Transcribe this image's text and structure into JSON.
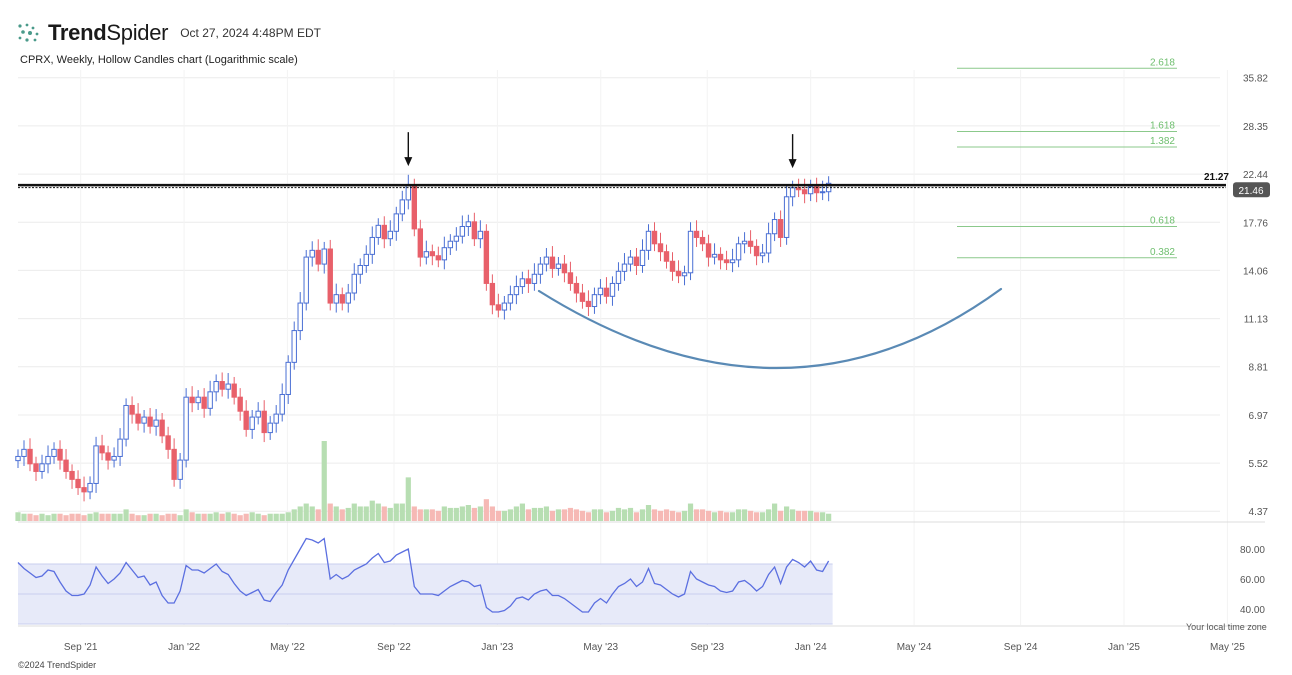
{
  "header": {
    "brand_bold": "Trend",
    "brand_light": "Spider",
    "timestamp": "Oct 27, 2024 4:48PM EDT",
    "subtitle": "CPRX, Weekly, Hollow Candles chart (Logarithmic scale)"
  },
  "footer": {
    "copyright": "©2024 TrendSpider",
    "timezone": "Your local time zone"
  },
  "colors": {
    "up": "#4a6fd4",
    "down": "#e8606a",
    "vol_up": "#b7deb2",
    "vol_down": "#f6b9b5",
    "fib": "#8bc98b",
    "fib_text": "#6fbf6f",
    "arc": "#5a8ab5",
    "rsi_line": "#5b6fe0",
    "rsi_band": "#e7eaf9",
    "grid": "#ececec",
    "axis_text": "#555555",
    "price_badge": "#555555"
  },
  "icons": {
    "logo": "spider-dots-icon",
    "marker": "down-arrow-icon"
  },
  "chart_data": {
    "type": "candlestick",
    "symbol": "CPRX",
    "interval": "Weekly",
    "scale": "log",
    "y_ticks": [
      35.82,
      28.35,
      22.44,
      17.76,
      14.06,
      11.13,
      8.81,
      6.97,
      5.52,
      4.37
    ],
    "x_ticks": [
      {
        "t": 2021.67,
        "label": "Sep '21"
      },
      {
        "t": 2022.0,
        "label": "Jan '22"
      },
      {
        "t": 2022.33,
        "label": "May '22"
      },
      {
        "t": 2022.67,
        "label": "Sep '22"
      },
      {
        "t": 2023.0,
        "label": "Jan '23"
      },
      {
        "t": 2023.33,
        "label": "May '23"
      },
      {
        "t": 2023.67,
        "label": "Sep '23"
      },
      {
        "t": 2024.0,
        "label": "Jan '24"
      },
      {
        "t": 2024.33,
        "label": "May '24"
      },
      {
        "t": 2024.67,
        "label": "Sep '24"
      },
      {
        "t": 2025.0,
        "label": "Jan '25"
      },
      {
        "t": 2025.33,
        "label": "May '25"
      }
    ],
    "closes": [
      5.7,
      5.9,
      5.5,
      5.3,
      5.5,
      5.7,
      5.9,
      5.6,
      5.3,
      5.1,
      4.9,
      4.8,
      5.0,
      6.0,
      5.8,
      5.6,
      5.7,
      6.2,
      7.3,
      7.0,
      6.7,
      6.9,
      6.6,
      6.8,
      6.3,
      5.9,
      5.1,
      5.6,
      7.6,
      7.4,
      7.6,
      7.2,
      7.8,
      8.2,
      7.9,
      8.1,
      7.6,
      7.1,
      6.5,
      6.9,
      7.1,
      6.4,
      6.7,
      7.0,
      7.7,
      9.0,
      10.5,
      12.0,
      15.0,
      15.5,
      14.5,
      15.6,
      12.0,
      12.5,
      12.0,
      12.6,
      13.8,
      14.4,
      15.2,
      16.5,
      17.5,
      16.4,
      17.0,
      18.5,
      19.8,
      21.2,
      17.2,
      15.0,
      15.4,
      15.1,
      14.8,
      15.7,
      16.2,
      16.6,
      17.4,
      17.8,
      16.4,
      17.0,
      13.2,
      11.9,
      11.6,
      12.0,
      12.5,
      13.0,
      13.5,
      13.2,
      13.8,
      14.5,
      15.0,
      14.2,
      14.5,
      13.9,
      13.2,
      12.6,
      12.1,
      11.8,
      12.5,
      12.9,
      12.4,
      13.2,
      14.0,
      14.5,
      15.0,
      14.4,
      15.5,
      17.0,
      16.0,
      15.4,
      14.7,
      14.0,
      13.7,
      13.9,
      17.0,
      16.5,
      16.0,
      15.0,
      15.2,
      14.8,
      14.6,
      14.8,
      16.0,
      16.2,
      15.8,
      15.1,
      15.3,
      16.8,
      18.0,
      16.5,
      20.1,
      21.0,
      20.8,
      20.4,
      21.1,
      20.5,
      20.6,
      21.46
    ],
    "current_price": 21.46,
    "resistance_label": "21.27",
    "resistance_level": 21.27,
    "fib_levels": [
      {
        "label": "2.618",
        "price": 37.5
      },
      {
        "label": "1.618",
        "price": 27.6
      },
      {
        "label": "1.382",
        "price": 25.6
      },
      {
        "label": "0.618",
        "price": 17.4
      },
      {
        "label": "0.382",
        "price": 14.95
      }
    ],
    "rsi_ticks": [
      80.0,
      60.0,
      40.0
    ],
    "rsi_band": [
      70,
      30
    ],
    "rsi_values": [
      71,
      67,
      64,
      61,
      62,
      66,
      65,
      58,
      52,
      49,
      49,
      50,
      56,
      68,
      62,
      57,
      60,
      64,
      71,
      66,
      61,
      62,
      56,
      58,
      49,
      44,
      44,
      52,
      69,
      66,
      66,
      64,
      67,
      70,
      65,
      63,
      57,
      52,
      49,
      51,
      53,
      46,
      45,
      51,
      56,
      66,
      73,
      80,
      87,
      86,
      84,
      87,
      60,
      63,
      60,
      62,
      66,
      68,
      70,
      74,
      77,
      71,
      72,
      76,
      78,
      80,
      55,
      50,
      50,
      50,
      49,
      52,
      55,
      57,
      59,
      58,
      55,
      56,
      41,
      38,
      38,
      39,
      42,
      47,
      48,
      46,
      50,
      52,
      53,
      49,
      49,
      47,
      44,
      41,
      38,
      38,
      44,
      47,
      44,
      50,
      55,
      57,
      60,
      55,
      58,
      67,
      57,
      56,
      53,
      50,
      48,
      50,
      65,
      60,
      58,
      56,
      55,
      52,
      51,
      52,
      58,
      59,
      56,
      52,
      55,
      63,
      68,
      57,
      68,
      73,
      71,
      68,
      72,
      66,
      65,
      72
    ],
    "volume_values": [
      6,
      5,
      5,
      4,
      5,
      4,
      5,
      5,
      4,
      5,
      5,
      4,
      5,
      6,
      5,
      5,
      5,
      5,
      8,
      5,
      4,
      4,
      5,
      5,
      4,
      5,
      5,
      4,
      8,
      6,
      5,
      5,
      5,
      6,
      5,
      6,
      5,
      4,
      5,
      6,
      5,
      4,
      5,
      5,
      5,
      6,
      8,
      10,
      12,
      10,
      8,
      55,
      12,
      10,
      8,
      9,
      12,
      10,
      10,
      14,
      12,
      10,
      9,
      12,
      12,
      30,
      10,
      8,
      8,
      8,
      7,
      10,
      9,
      9,
      10,
      11,
      9,
      10,
      15,
      10,
      7,
      7,
      8,
      10,
      12,
      8,
      9,
      9,
      10,
      7,
      8,
      8,
      9,
      8,
      7,
      6,
      8,
      8,
      6,
      7,
      9,
      8,
      9,
      6,
      8,
      11,
      8,
      7,
      8,
      7,
      6,
      7,
      12,
      8,
      8,
      7,
      6,
      7,
      6,
      6,
      8,
      8,
      7,
      6,
      6,
      8,
      12,
      7,
      10,
      8,
      7,
      7,
      7,
      6,
      6,
      5
    ]
  }
}
